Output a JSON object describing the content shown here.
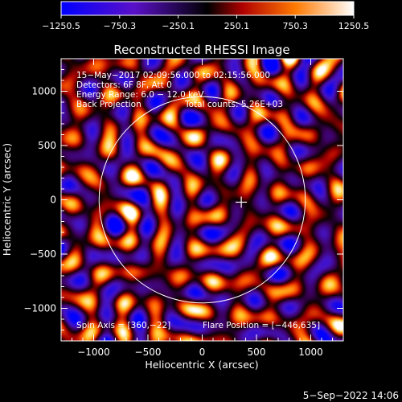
{
  "chart_data": {
    "type": "heatmap",
    "title": "Reconstructed RHESSI Image",
    "xlabel": "Heliocentric X (arcsec)",
    "ylabel": "Heliocentric Y (arcsec)",
    "xlim": [
      -1300,
      1300
    ],
    "ylim": [
      -1300,
      1300
    ],
    "xticks": [
      -1000,
      -500,
      0,
      500,
      1000
    ],
    "yticks": [
      -1000,
      -500,
      0,
      500,
      1000
    ],
    "xtick_labels": [
      "−1000",
      "−500",
      "0",
      "500",
      "1000"
    ],
    "ytick_labels": [
      "−1000",
      "−500",
      "0",
      "500",
      "1000"
    ],
    "colorbar": {
      "ticks": [
        -1250.5,
        -750.3,
        -250.1,
        250.1,
        750.3,
        1250.5
      ],
      "tick_labels": [
        "−1250.5",
        "−750.3",
        "−250.1",
        "250.1",
        "750.3",
        "1250.5"
      ],
      "range": [
        -1250.5,
        1250.5
      ]
    },
    "annotations": {
      "time_range": "15−May−2017 02:09:56.000 to 02:15:56.000",
      "detectors": "Detectors: 6F 8F, Att 0",
      "energy": "Energy Range: 6.0 − 12.0 keV",
      "method": "Back Projection",
      "counts": "Total counts: 5.26E+03",
      "spin_axis": "Spin Axis = [360,−22]",
      "flare_position": "Flare Position = [−446,635]"
    },
    "solar_limb_radius": 950,
    "flare_marker": [
      360,
      -22
    ]
  },
  "footer": {
    "date": "5−Sep−2022 14:06"
  }
}
